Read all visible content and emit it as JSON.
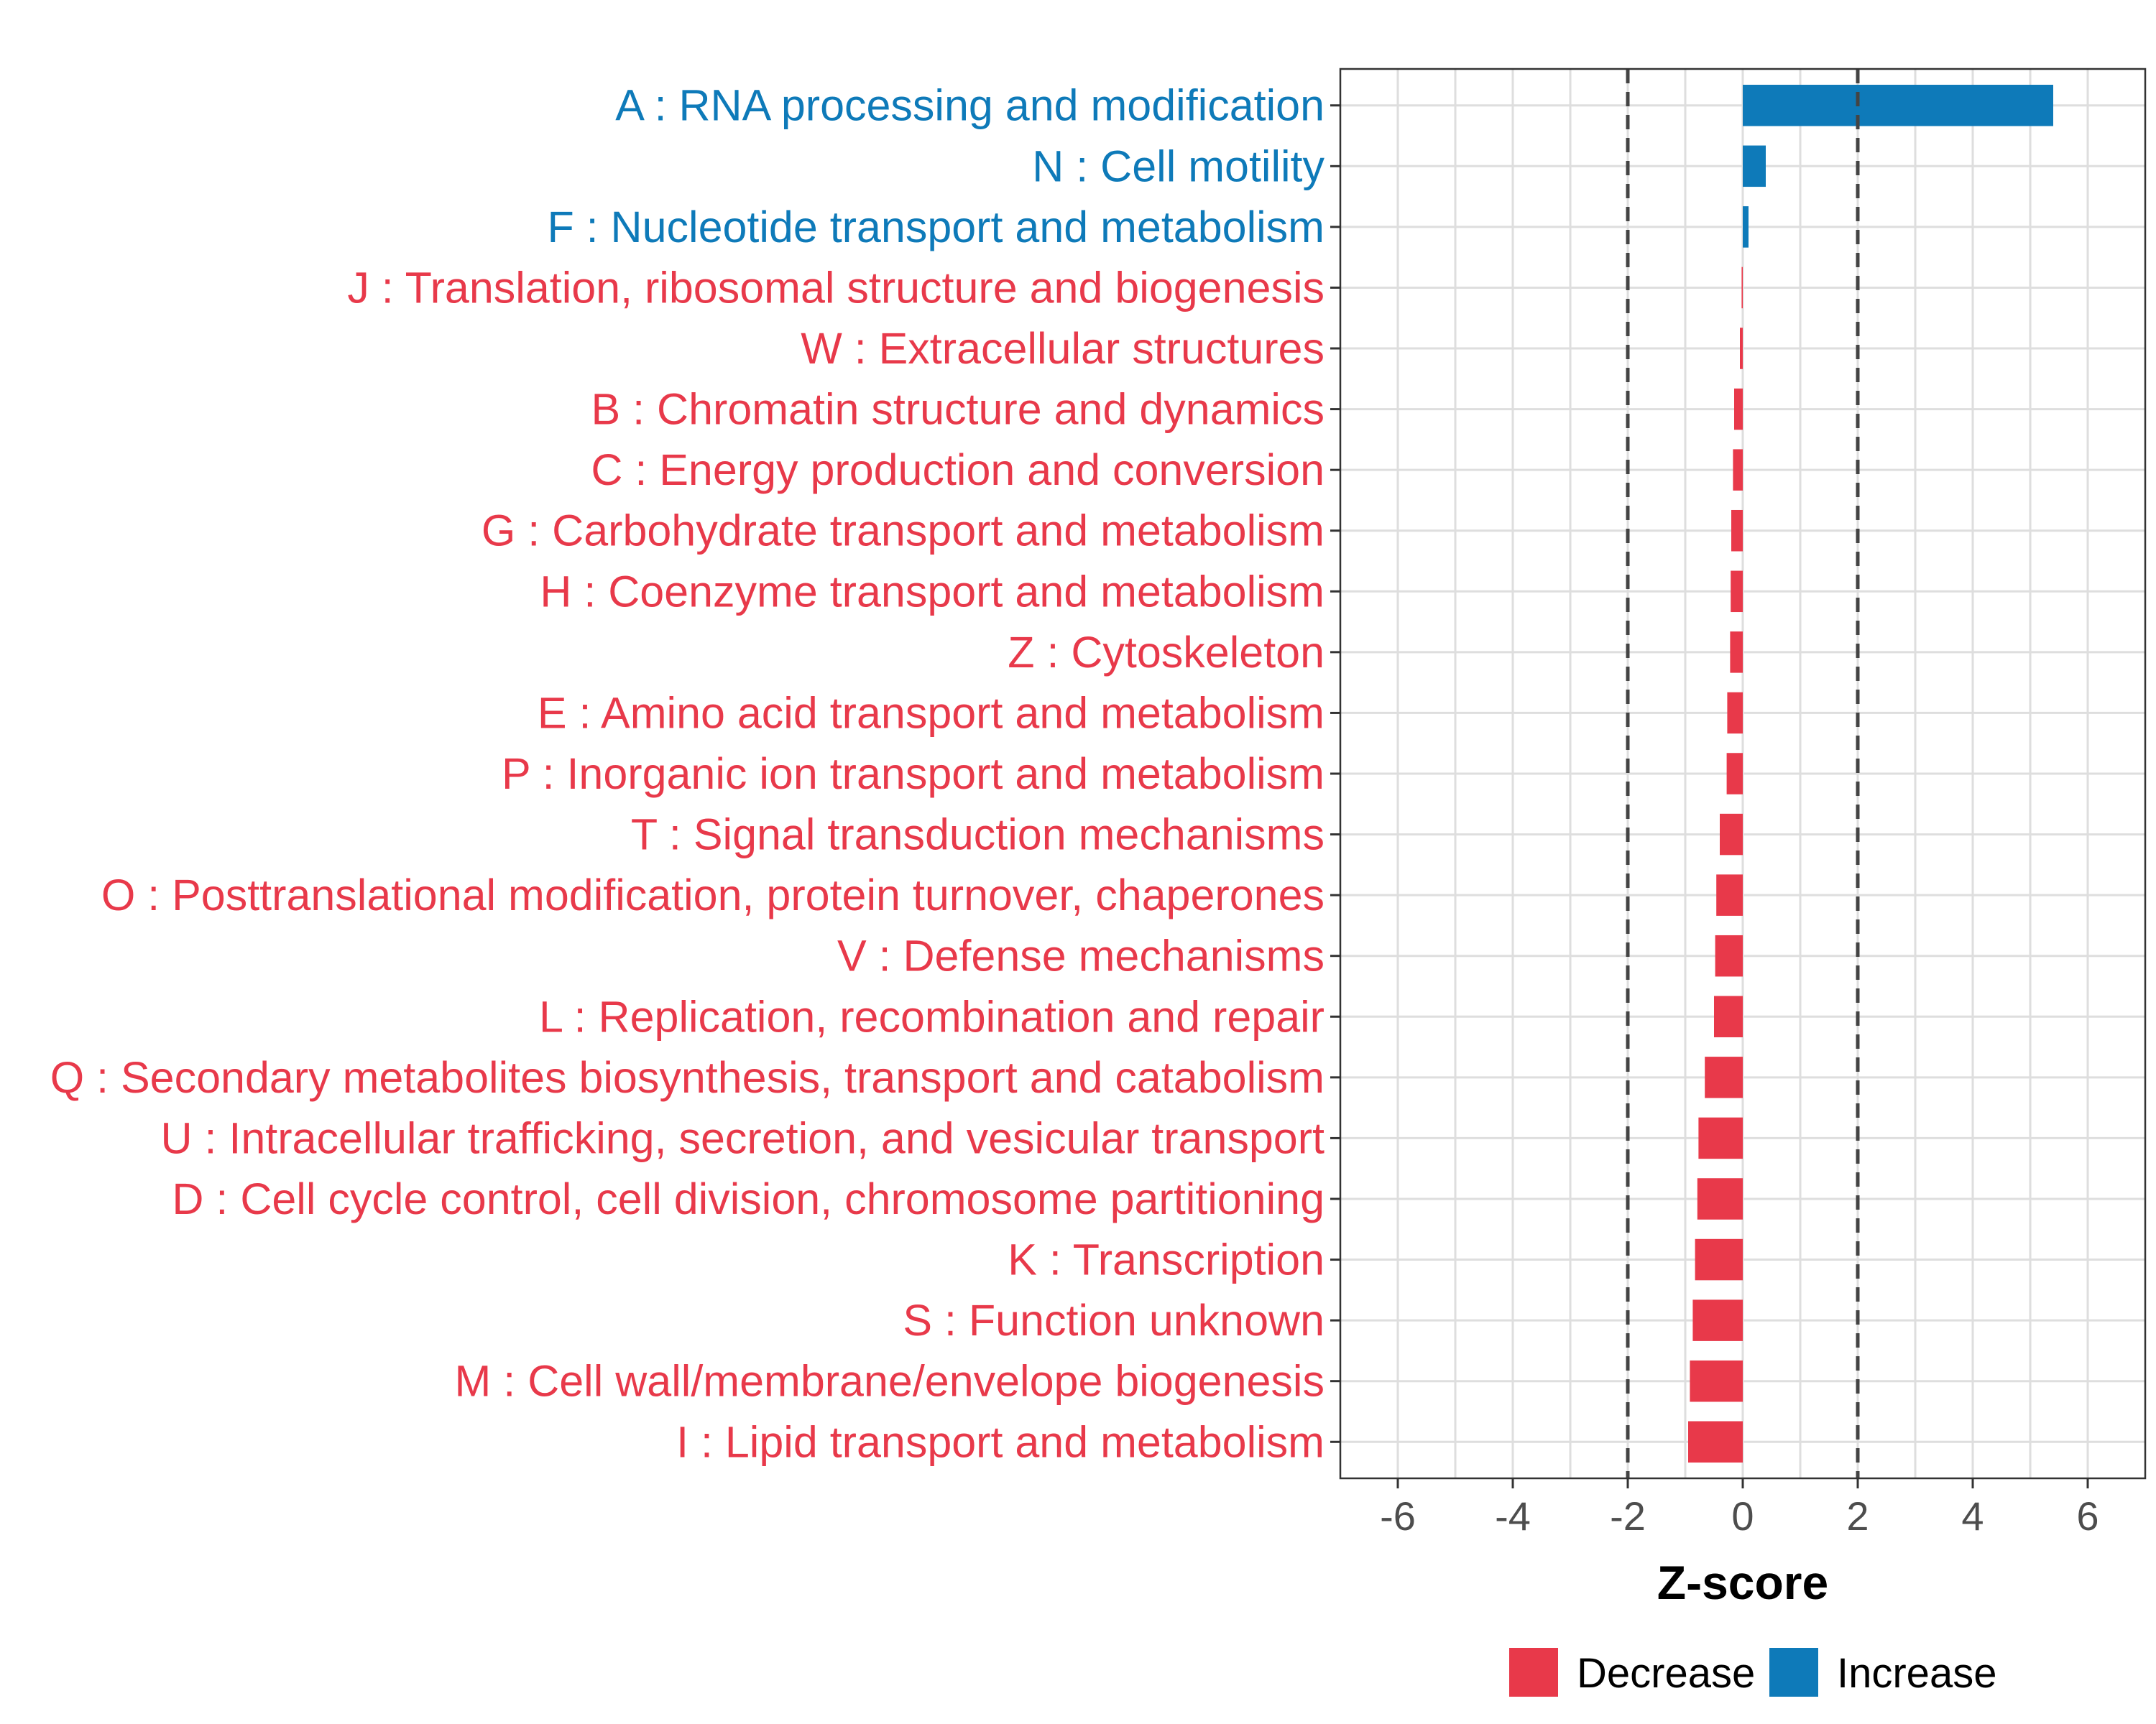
{
  "chart_data": {
    "type": "bar",
    "orientation": "horizontal",
    "categories": [
      "A : RNA processing and modification",
      "N : Cell motility",
      "F : Nucleotide transport and metabolism",
      "J : Translation, ribosomal structure and biogenesis",
      "W : Extracellular structures",
      "B : Chromatin structure and dynamics",
      "C : Energy production and conversion",
      "G : Carbohydrate transport and metabolism",
      "H : Coenzyme transport and metabolism",
      "Z : Cytoskeleton",
      "E : Amino acid transport and metabolism",
      "P : Inorganic ion transport and metabolism",
      "T : Signal transduction mechanisms",
      "O : Posttranslational modification, protein turnover, chaperones",
      "V : Defense mechanisms",
      "L : Replication, recombination and repair",
      "Q : Secondary metabolites biosynthesis, transport and catabolism",
      "U : Intracellular trafficking, secretion, and vesicular transport",
      "D : Cell cycle control, cell division, chromosome partitioning",
      "K : Transcription",
      "S : Function unknown",
      "M : Cell wall/membrane/envelope biogenesis",
      "I : Lipid transport and metabolism"
    ],
    "values": [
      5.4,
      0.4,
      0.1,
      -0.02,
      -0.05,
      -0.15,
      -0.17,
      -0.2,
      -0.21,
      -0.22,
      -0.27,
      -0.28,
      -0.4,
      -0.46,
      -0.48,
      -0.5,
      -0.66,
      -0.77,
      -0.79,
      -0.83,
      -0.87,
      -0.92,
      -0.95
    ],
    "groups": [
      "Increase",
      "Increase",
      "Increase",
      "Decrease",
      "Decrease",
      "Decrease",
      "Decrease",
      "Decrease",
      "Decrease",
      "Decrease",
      "Decrease",
      "Decrease",
      "Decrease",
      "Decrease",
      "Decrease",
      "Decrease",
      "Decrease",
      "Decrease",
      "Decrease",
      "Decrease",
      "Decrease",
      "Decrease",
      "Decrease"
    ],
    "colors": {
      "Decrease": "#E8394A",
      "Increase": "#0E7AB9"
    },
    "xlabel": "Z-score",
    "ylabel": "",
    "xlim": [
      -7,
      7
    ],
    "xticks": [
      -6,
      -4,
      -2,
      0,
      2,
      4,
      6
    ],
    "xtick_labels": [
      "-6",
      "-4",
      "-2",
      "0",
      "2",
      "4",
      "6"
    ],
    "reference_lines": [
      -2,
      2
    ],
    "grid": true,
    "legend": {
      "position": "bottom",
      "entries": [
        "Decrease",
        "Increase"
      ]
    }
  }
}
